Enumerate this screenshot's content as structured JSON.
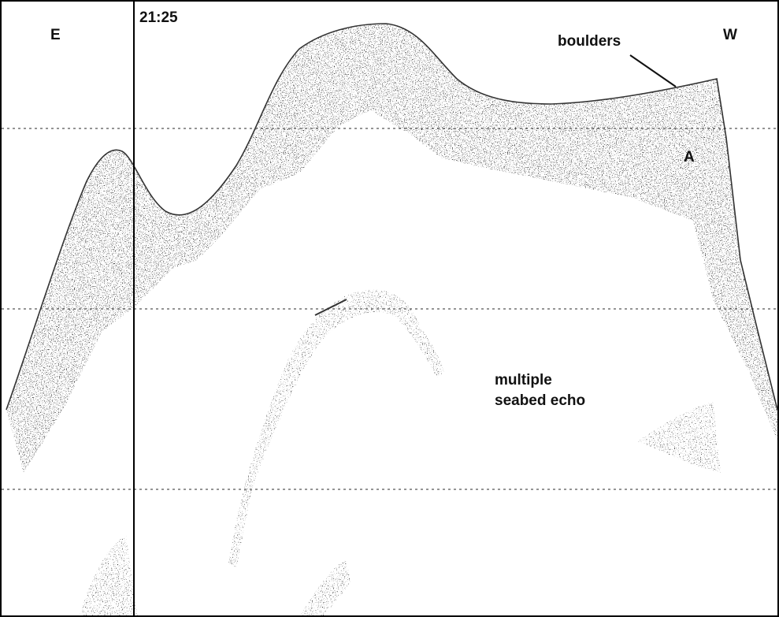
{
  "labels": {
    "east": "E",
    "time": "21:25",
    "west": "W",
    "boulders": "boulders",
    "point": "A",
    "echo": [
      "multiple",
      "seabed echo"
    ]
  }
}
